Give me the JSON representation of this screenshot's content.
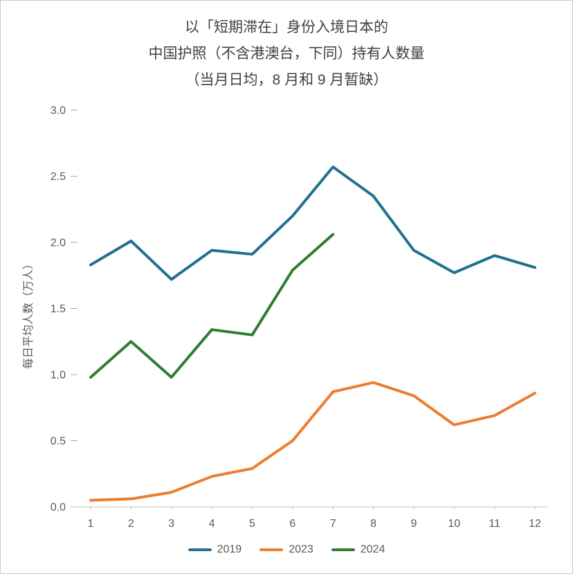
{
  "title_lines": [
    "以「短期滞在」身份入境日本的",
    "中国护照（不含港澳台，下同）持有人数量",
    "（当月日均，8 月和 9 月暂缺）"
  ],
  "chart_data": {
    "type": "line",
    "x": [
      "1",
      "2",
      "3",
      "4",
      "5",
      "6",
      "7",
      "8",
      "9",
      "10",
      "11",
      "12"
    ],
    "xlabel": "",
    "ylabel": "每日平均人数（万人）",
    "ylim": [
      0,
      3.0
    ],
    "yticks": [
      0.0,
      0.5,
      1.0,
      1.5,
      2.0,
      2.5,
      3.0
    ],
    "grid": false,
    "legend_position": "bottom",
    "series": [
      {
        "name": "2019",
        "color": "#21708F",
        "values": [
          1.83,
          2.01,
          1.72,
          1.94,
          1.91,
          2.2,
          2.57,
          2.35,
          1.94,
          1.77,
          1.9,
          1.81
        ]
      },
      {
        "name": "2023",
        "color": "#ED7D31",
        "values": [
          0.05,
          0.06,
          0.11,
          0.23,
          0.29,
          0.5,
          0.87,
          0.94,
          0.84,
          0.62,
          0.69,
          0.86
        ]
      },
      {
        "name": "2024",
        "color": "#2E7D32",
        "values": [
          0.98,
          1.25,
          0.98,
          1.34,
          1.3,
          1.79,
          2.06,
          null,
          null,
          null,
          null,
          null
        ]
      }
    ]
  }
}
